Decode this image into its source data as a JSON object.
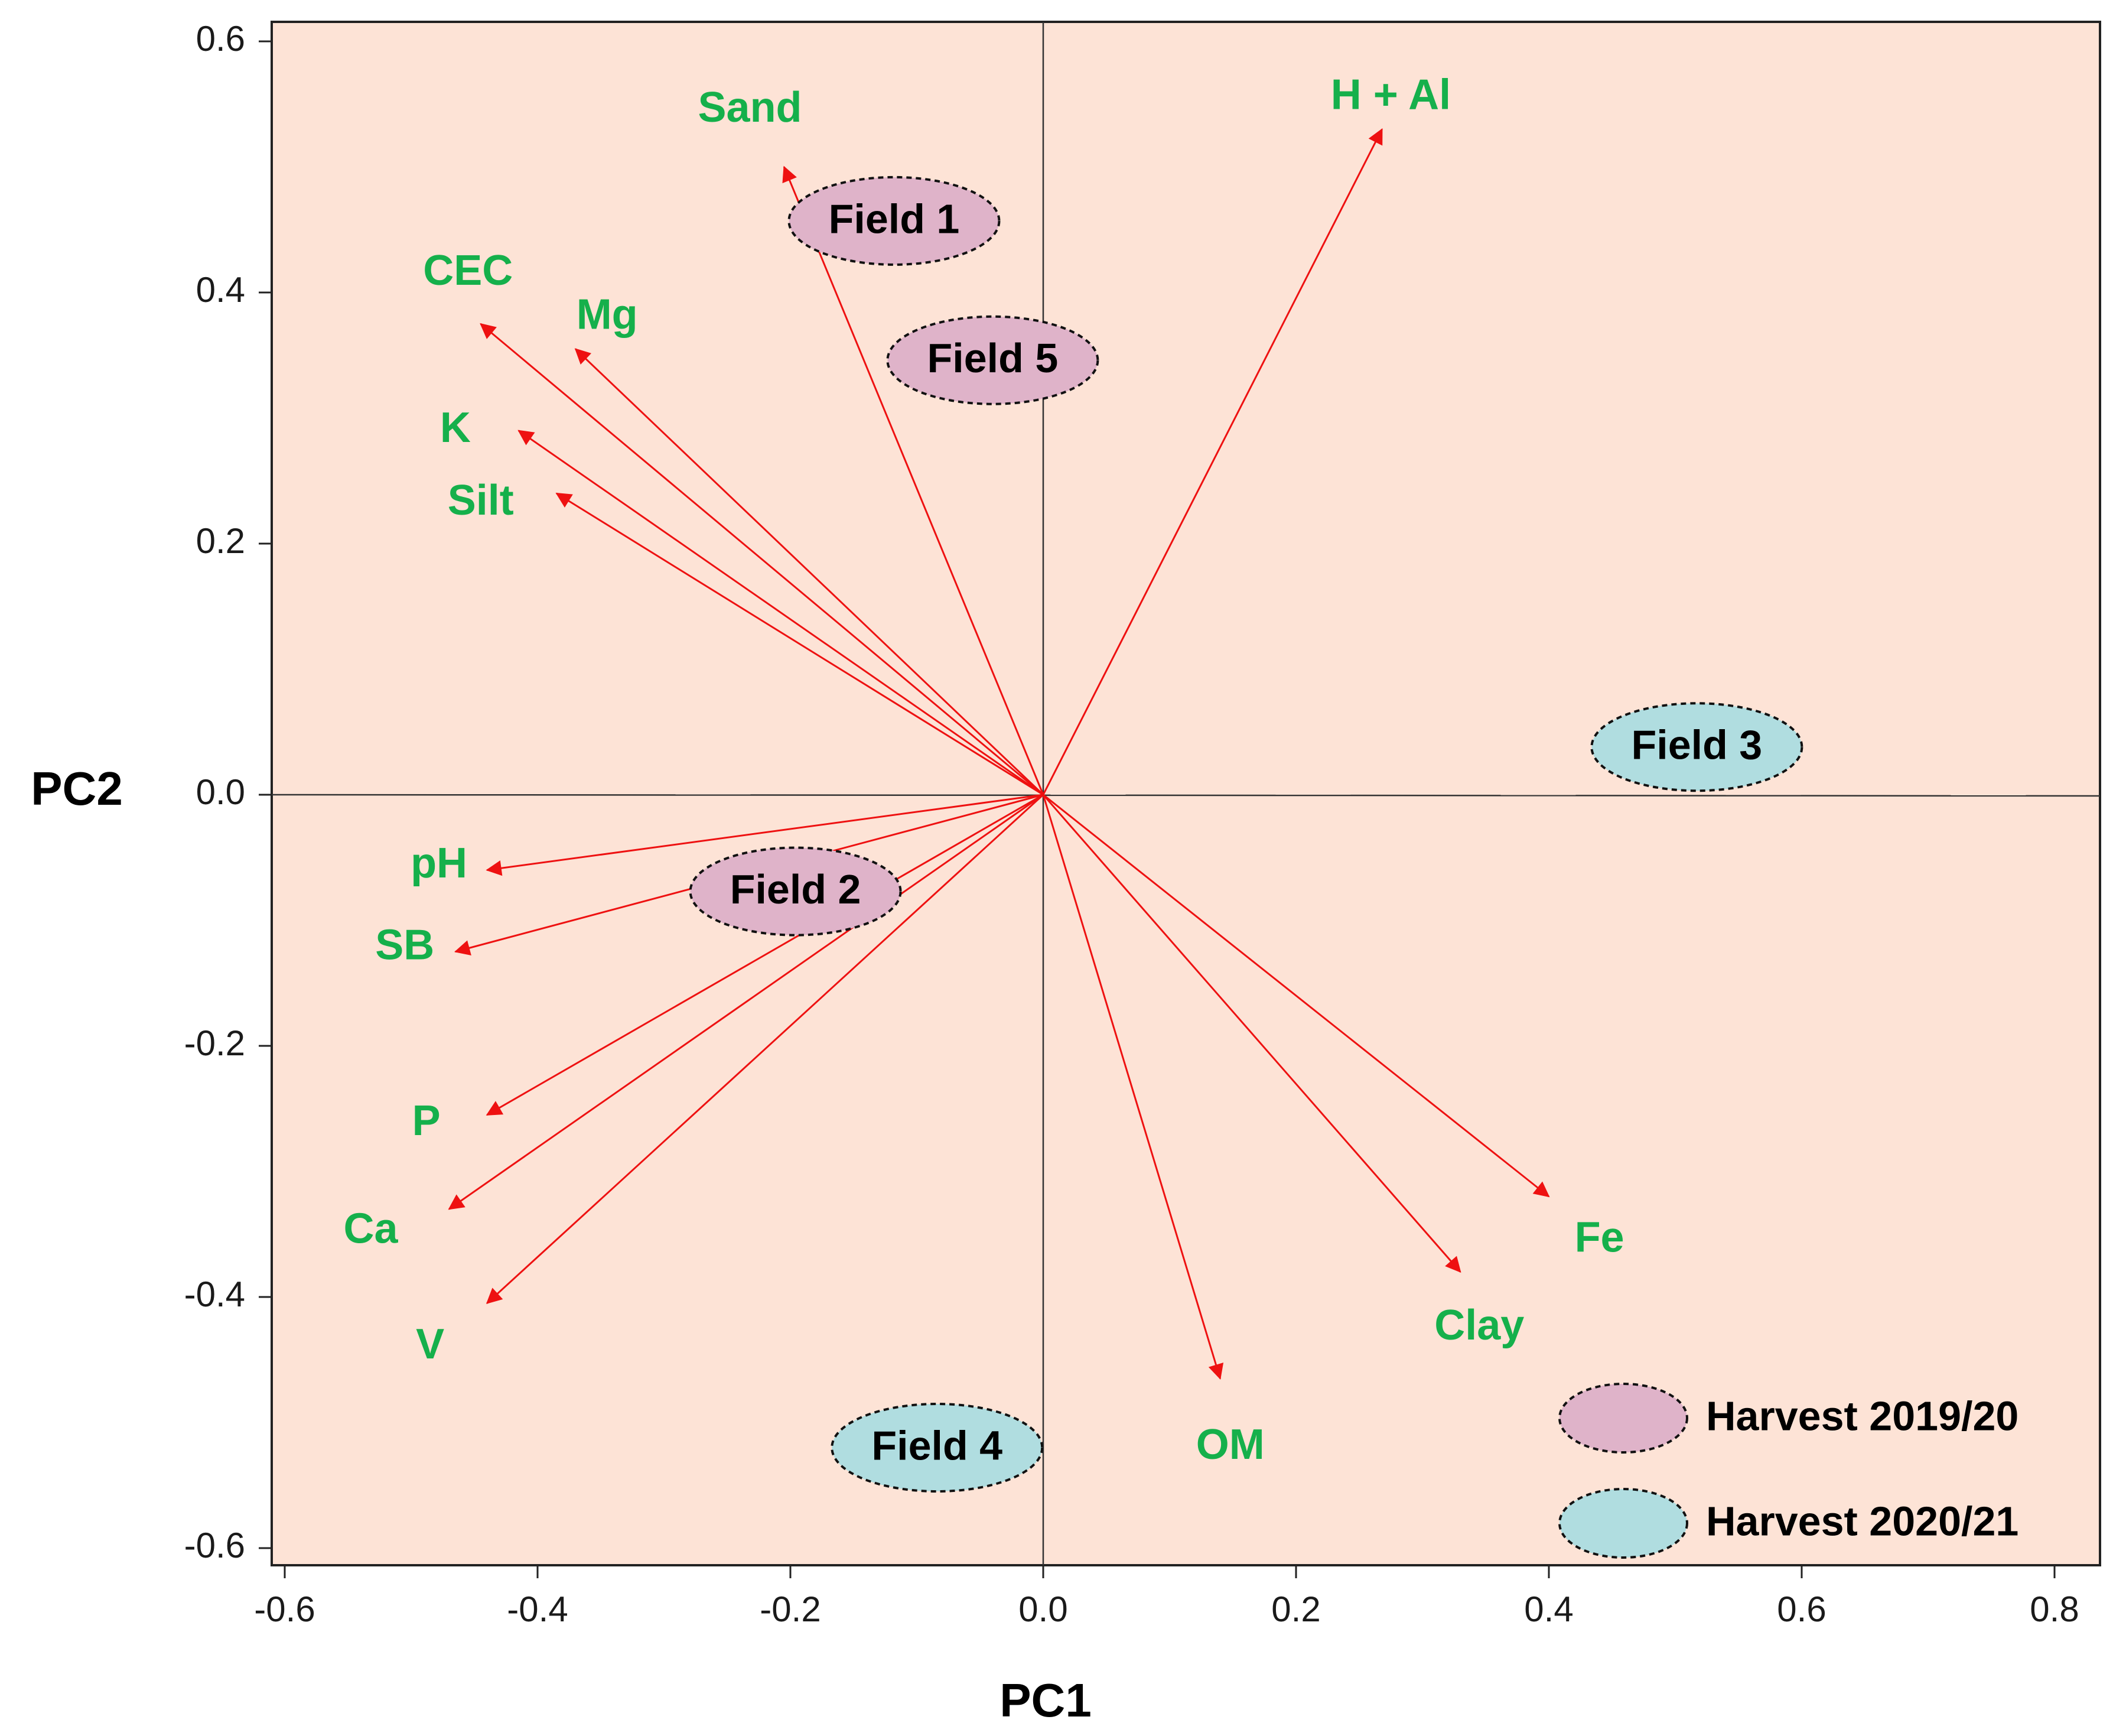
{
  "chart_data": {
    "type": "scatter",
    "subtype": "pca-biplot",
    "xlabel": "PC1",
    "ylabel": "PC2",
    "xlim": [
      -0.63,
      0.84
    ],
    "ylim": [
      -0.615,
      0.615
    ],
    "xticks": [
      -0.6,
      -0.4,
      -0.2,
      0.0,
      0.2,
      0.4,
      0.6,
      0.8
    ],
    "xtick_labels": [
      "-0.6",
      "-0.4",
      "-0.2",
      "0.0",
      "0.2",
      "0.4",
      "0.6",
      "0.8"
    ],
    "yticks": [
      0.6,
      0.4,
      0.2,
      0.0,
      -0.2,
      -0.4,
      -0.6
    ],
    "ytick_labels": [
      "0.6",
      "0.4",
      "0.2",
      "0.0",
      "-0.2",
      "-0.4",
      "-0.6"
    ],
    "vectors": [
      {
        "name": "Sand",
        "x": -0.205,
        "y": 0.5,
        "label_x": -0.232,
        "label_y": 0.545
      },
      {
        "name": "H + Al",
        "x": 0.268,
        "y": 0.53,
        "label_x": 0.275,
        "label_y": 0.555
      },
      {
        "name": "CEC",
        "x": -0.445,
        "y": 0.375,
        "label_x": -0.455,
        "label_y": 0.415
      },
      {
        "name": "Mg",
        "x": -0.37,
        "y": 0.355,
        "label_x": -0.345,
        "label_y": 0.38
      },
      {
        "name": "K",
        "x": -0.415,
        "y": 0.29,
        "label_x": -0.465,
        "label_y": 0.29
      },
      {
        "name": "Silt",
        "x": -0.385,
        "y": 0.24,
        "label_x": -0.445,
        "label_y": 0.232
      },
      {
        "name": "pH",
        "x": -0.44,
        "y": -0.06,
        "label_x": -0.478,
        "label_y": -0.057
      },
      {
        "name": "SB",
        "x": -0.465,
        "y": -0.125,
        "label_x": -0.505,
        "label_y": -0.122
      },
      {
        "name": "P",
        "x": -0.44,
        "y": -0.255,
        "label_x": -0.488,
        "label_y": -0.262
      },
      {
        "name": "Ca",
        "x": -0.47,
        "y": -0.33,
        "label_x": -0.532,
        "label_y": -0.348
      },
      {
        "name": "V",
        "x": -0.44,
        "y": -0.405,
        "label_x": -0.485,
        "label_y": -0.44
      },
      {
        "name": "OM",
        "x": 0.14,
        "y": -0.465,
        "label_x": 0.148,
        "label_y": -0.52
      },
      {
        "name": "Clay",
        "x": 0.33,
        "y": -0.38,
        "label_x": 0.345,
        "label_y": -0.425
      },
      {
        "name": "Fe",
        "x": 0.4,
        "y": -0.32,
        "label_x": 0.44,
        "label_y": -0.355
      }
    ],
    "fields": [
      {
        "name": "Field 1",
        "x": -0.118,
        "y": 0.457,
        "group": "Harvest 2019/20"
      },
      {
        "name": "Field 5",
        "x": -0.04,
        "y": 0.346,
        "group": "Harvest 2019/20"
      },
      {
        "name": "Field 2",
        "x": -0.196,
        "y": -0.077,
        "group": "Harvest 2019/20"
      },
      {
        "name": "Field 3",
        "x": 0.517,
        "y": 0.038,
        "group": "Harvest 2020/21"
      },
      {
        "name": "Field 4",
        "x": -0.084,
        "y": -0.52,
        "group": "Harvest 2020/21"
      }
    ],
    "legend": {
      "position": "bottom-right",
      "entries": [
        {
          "label": "Harvest 2019/20",
          "color": "#dfb3c9"
        },
        {
          "label": "Harvest 2020/21",
          "color": "#b0dde0"
        }
      ]
    },
    "colors": {
      "plot_background": "#fde3d6",
      "vector": "#ee1111",
      "vector_label": "#15b04b",
      "harvest_2019_20": "#dfb3c9",
      "harvest_2020_21": "#b0dde0",
      "axis": "#222222"
    }
  }
}
